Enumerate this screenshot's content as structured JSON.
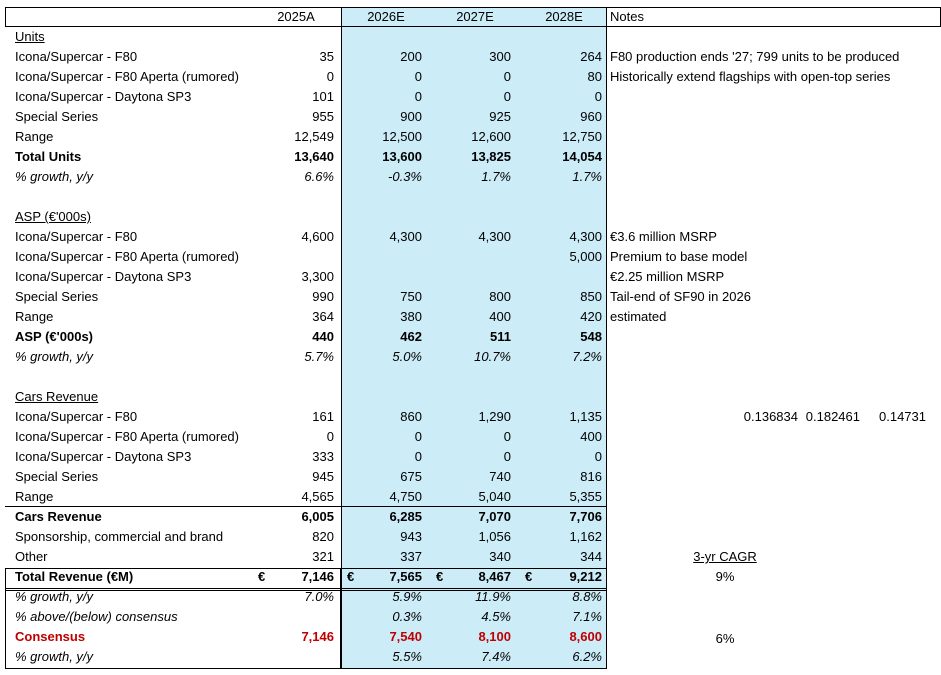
{
  "header": {
    "cols": [
      "2025A",
      "2026E",
      "2027E",
      "2028E"
    ],
    "notes": "Notes"
  },
  "sections": {
    "units": {
      "title": "Units",
      "rows": [
        {
          "label": "Icona/Supercar - F80",
          "v": [
            "35",
            "200",
            "300",
            "264"
          ],
          "note": "F80 production ends '27; 799 units to be produced"
        },
        {
          "label": "Icona/Supercar - F80 Aperta (rumored)",
          "v": [
            "0",
            "0",
            "0",
            "80"
          ],
          "note": "Historically extend flagships with open-top series"
        },
        {
          "label": "Icona/Supercar - Daytona SP3",
          "v": [
            "101",
            "0",
            "0",
            "0"
          ],
          "note": ""
        },
        {
          "label": "Special Series",
          "v": [
            "955",
            "900",
            "925",
            "960"
          ],
          "note": ""
        },
        {
          "label": "Range",
          "v": [
            "12,549",
            "12,500",
            "12,600",
            "12,750"
          ],
          "note": ""
        }
      ],
      "total": {
        "label": "Total Units",
        "v": [
          "13,640",
          "13,600",
          "13,825",
          "14,054"
        ]
      },
      "growth": {
        "label": "% growth, y/y",
        "v": [
          "6.6%",
          "-0.3%",
          "1.7%",
          "1.7%"
        ]
      }
    },
    "asp": {
      "title": "ASP (€'000s)",
      "rows": [
        {
          "label": "Icona/Supercar - F80",
          "v": [
            "4,600",
            "4,300",
            "4,300",
            "4,300"
          ],
          "note": "€3.6 million MSRP"
        },
        {
          "label": "Icona/Supercar - F80 Aperta (rumored)",
          "v": [
            "",
            "",
            "",
            "5,000"
          ],
          "note": "Premium to base model"
        },
        {
          "label": "Icona/Supercar - Daytona SP3",
          "v": [
            "3,300",
            "",
            "",
            ""
          ],
          "note": "€2.25 million MSRP"
        },
        {
          "label": "Special Series",
          "v": [
            "990",
            "750",
            "800",
            "850"
          ],
          "note": "Tail-end of SF90 in 2026"
        },
        {
          "label": "Range",
          "v": [
            "364",
            "380",
            "400",
            "420"
          ],
          "note": "estimated"
        }
      ],
      "total": {
        "label": "ASP (€'000s)",
        "v": [
          "440",
          "462",
          "511",
          "548"
        ]
      },
      "growth": {
        "label": "% growth, y/y",
        "v": [
          "5.7%",
          "5.0%",
          "10.7%",
          "7.2%"
        ]
      }
    },
    "cars": {
      "title": "Cars Revenue",
      "rows": [
        {
          "label": "Icona/Supercar - F80",
          "v": [
            "161",
            "860",
            "1,290",
            "1,135"
          ],
          "note": ""
        },
        {
          "label": "Icona/Supercar - F80 Aperta (rumored)",
          "v": [
            "0",
            "0",
            "0",
            "400"
          ],
          "note": ""
        },
        {
          "label": "Icona/Supercar - Daytona SP3",
          "v": [
            "333",
            "0",
            "0",
            "0"
          ],
          "note": ""
        },
        {
          "label": "Special Series",
          "v": [
            "945",
            "675",
            "740",
            "816"
          ],
          "note": ""
        },
        {
          "label": "Range",
          "v": [
            "4,565",
            "4,750",
            "5,040",
            "5,355"
          ],
          "note": ""
        }
      ],
      "total": {
        "label": "Cars Revenue",
        "v": [
          "6,005",
          "6,285",
          "7,070",
          "7,706"
        ]
      },
      "sponsorship": {
        "label": "Sponsorship, commercial and brand",
        "v": [
          "820",
          "943",
          "1,056",
          "1,162"
        ]
      },
      "other": {
        "label": "Other",
        "v": [
          "321",
          "337",
          "340",
          "344"
        ]
      }
    },
    "revenue": {
      "total": {
        "label": "Total Revenue (€M)",
        "currency": "€",
        "v": [
          "7,146",
          "7,565",
          "8,467",
          "9,212"
        ]
      },
      "growth": {
        "label": "% growth, y/y",
        "v": [
          "7.0%",
          "5.9%",
          "11.9%",
          "8.8%"
        ]
      },
      "vs_consensus": {
        "label": "% above/(below) consensus",
        "v": [
          "",
          "0.3%",
          "4.5%",
          "7.1%"
        ]
      },
      "consensus": {
        "label": "Consensus",
        "v": [
          "7,146",
          "7,540",
          "8,100",
          "8,600"
        ]
      },
      "consensus_growth": {
        "label": "% growth, y/y",
        "v": [
          "",
          "5.5%",
          "7.4%",
          "6.2%"
        ]
      }
    }
  },
  "side": {
    "stray_values": [
      "0.136834",
      "0.182461",
      "0.14731"
    ],
    "cagr_label": "3-yr CAGR",
    "cagr_value": "9%",
    "consensus_cagr": "6%"
  },
  "colors": {
    "forecast_fill": "#ccecf8",
    "consensus_red": "#c00000"
  }
}
